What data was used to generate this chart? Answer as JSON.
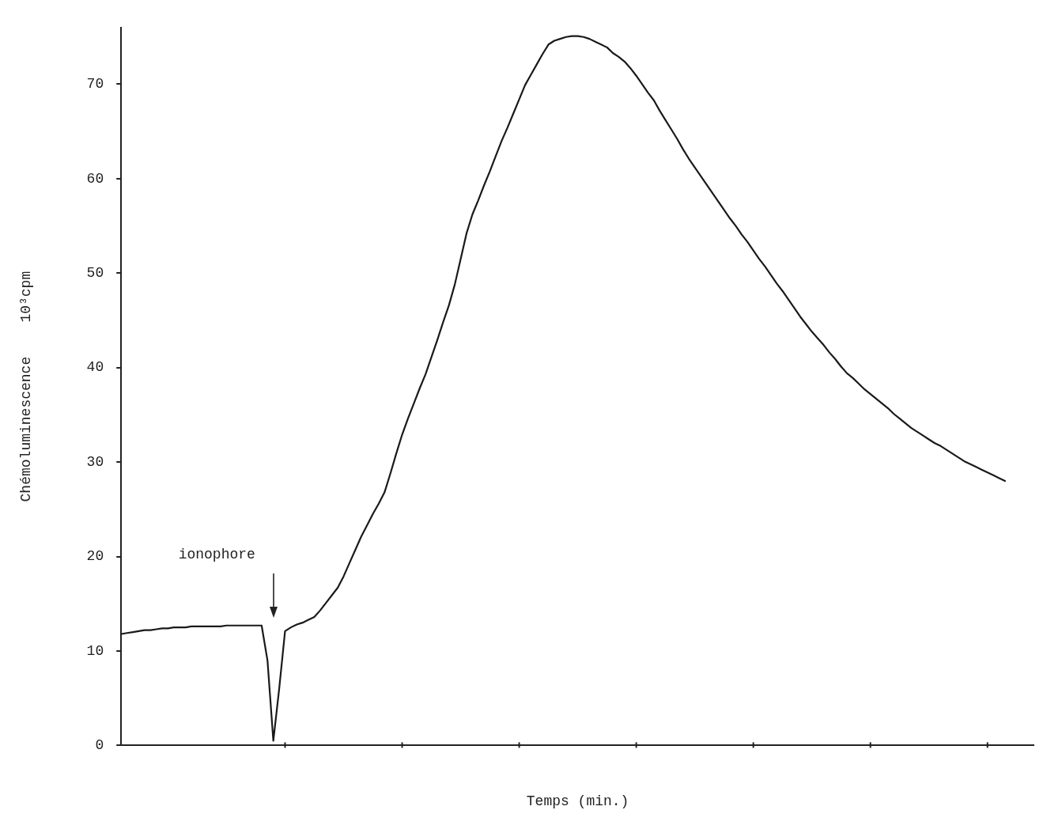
{
  "chart_data": {
    "type": "line",
    "xlabel": "Temps (min.)",
    "ylabel": "Chémoluminescence    10³cpm",
    "annotations": [
      "ionophore"
    ],
    "categories": [
      null,
      null,
      null,
      null,
      null,
      null,
      null,
      null,
      null,
      null,
      null,
      null,
      null,
      null,
      null,
      null,
      null,
      null,
      null,
      null,
      null,
      null,
      null,
      null,
      null,
      null,
      null,
      null,
      null,
      null,
      null,
      null,
      null,
      null,
      null,
      null,
      null,
      null,
      null,
      null,
      null,
      null,
      null,
      null,
      null,
      null,
      null,
      null,
      null,
      null,
      null,
      null,
      null,
      null,
      null,
      null,
      null,
      null,
      null,
      null,
      null,
      null,
      null,
      null,
      null,
      null,
      null,
      null,
      null,
      null,
      null,
      null,
      null,
      null,
      null,
      null,
      null,
      null,
      null,
      null,
      null,
      null,
      null,
      null,
      null,
      null,
      null,
      null,
      null,
      null,
      null,
      null,
      null,
      null,
      null,
      null,
      null,
      null,
      null,
      null,
      null,
      null,
      null,
      null,
      null,
      null,
      null,
      null,
      null,
      null,
      null,
      null,
      null,
      null,
      null,
      null,
      null,
      null,
      null,
      null,
      null,
      null,
      null,
      null,
      null,
      null,
      null,
      null,
      null,
      null,
      null,
      null,
      null,
      null,
      null,
      null,
      null,
      null,
      null,
      null,
      null,
      null,
      null,
      null,
      null,
      null,
      null,
      null,
      null,
      null,
      null,
      null,
      null,
      null,
      null,
      null,
      null
    ],
    "series": [
      {
        "color": "#1a1a1a",
        "values": [
          11.8,
          11.9,
          12.0,
          12.1,
          12.2,
          12.2,
          12.3,
          12.4,
          12.4,
          12.5,
          12.5,
          12.5,
          12.6,
          12.6,
          12.6,
          12.6,
          12.6,
          12.6,
          12.7,
          12.7,
          12.7,
          12.7,
          12.7,
          12.7,
          12.7,
          9,
          0.5,
          6,
          12.1,
          12.5,
          12.8,
          13.0,
          13.3,
          13.6,
          14.3,
          15.1,
          15.9,
          16.7,
          17.9,
          19.3,
          20.7,
          22.1,
          23.3,
          24.5,
          25.6,
          26.8,
          28.8,
          30.9,
          32.9,
          34.6,
          36.2,
          37.8,
          39.3,
          41.1,
          42.9,
          44.8,
          46.6,
          48.8,
          51.5,
          54.2,
          56.2,
          57.7,
          59.3,
          60.8,
          62.4,
          64.0,
          65.4,
          66.9,
          68.4,
          69.9,
          71.0,
          72.1,
          73.2,
          74.2,
          74.6,
          74.8,
          75.0,
          75.1,
          75.1,
          75.0,
          74.8,
          74.5,
          74.2,
          73.9,
          73.3,
          72.9,
          72.4,
          71.7,
          70.9,
          70.0,
          69.1,
          68.3,
          67.2,
          66.2,
          65.2,
          64.2,
          63.1,
          62.1,
          61.2,
          60.3,
          59.4,
          58.5,
          57.6,
          56.7,
          55.8,
          55.0,
          54.1,
          53.3,
          52.4,
          51.5,
          50.7,
          49.8,
          48.9,
          48.1,
          47.2,
          46.3,
          45.4,
          44.6,
          43.8,
          43.1,
          42.4,
          41.6,
          40.9,
          40.1,
          39.4,
          38.9,
          38.3,
          37.7,
          37.2,
          36.7,
          36.2,
          35.7,
          35.1,
          34.6,
          34.1,
          33.6,
          33.2,
          32.8,
          32.4,
          32.0,
          31.7,
          31.3,
          30.9,
          30.5,
          30.1,
          29.8,
          29.5,
          29.2,
          28.9,
          28.6,
          28.3,
          28.0,
          null,
          null,
          null,
          null,
          null
        ]
      }
    ],
    "ylim": [
      0,
      76
    ],
    "yticks": [
      0,
      10,
      20,
      30,
      40,
      50,
      60,
      70
    ],
    "legend": false,
    "marker": "none",
    "tick_labels": "y"
  }
}
